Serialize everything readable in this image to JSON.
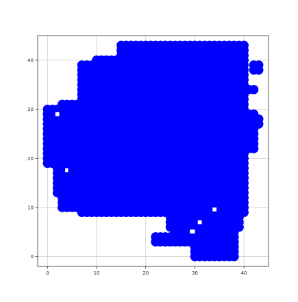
{
  "chart_data": {
    "type": "scatter",
    "title": "",
    "xlabel": "",
    "ylabel": "",
    "xlim": [
      -2,
      45
    ],
    "ylim": [
      -2,
      45
    ],
    "xticks": [
      0,
      10,
      20,
      30,
      40
    ],
    "yticks": [
      0,
      10,
      20,
      30,
      40
    ],
    "xtick_labels": [
      "0",
      "10",
      "20",
      "30",
      "40"
    ],
    "ytick_labels": [
      "0",
      "10",
      "20",
      "30",
      "40"
    ],
    "grid": true,
    "legend": "none",
    "marker_color": "#0000ff",
    "series": [
      {
        "marker": "circle",
        "regions": [
          {
            "x": [
              3,
              9
            ],
            "y": [
              10,
              31
            ]
          },
          {
            "x": [
              0,
              3
            ],
            "y": [
              19,
              30
            ]
          },
          {
            "x": [
              2,
              4
            ],
            "y": [
              13,
              19
            ]
          },
          {
            "x": [
              7,
              16
            ],
            "y": [
              9,
              39
            ]
          },
          {
            "x": [
              10,
              21
            ],
            "y": [
              9,
              40
            ]
          },
          {
            "x": [
              15,
              33
            ],
            "y": [
              9,
              43
            ]
          },
          {
            "x": [
              33,
              40
            ],
            "y": [
              9,
              43
            ]
          },
          {
            "x": [
              39,
              42
            ],
            "y": [
              22,
              29
            ]
          },
          {
            "x": [
              40,
              43
            ],
            "y": [
              27,
              28
            ]
          },
          {
            "x": [
              42,
              43
            ],
            "y": [
              38,
              39
            ]
          },
          {
            "x": [
              41,
              42
            ],
            "y": [
              34,
              34
            ]
          },
          {
            "x": [
              25,
              39
            ],
            "y": [
              6,
              9
            ]
          },
          {
            "x": [
              22,
              25
            ],
            "y": [
              3,
              4
            ]
          },
          {
            "x": [
              26,
              30
            ],
            "y": [
              3,
              6
            ]
          },
          {
            "x": [
              30,
              38
            ],
            "y": [
              0,
              9
            ]
          },
          {
            "x": [
              37,
              38
            ],
            "y": [
              1,
              7
            ]
          }
        ],
        "gaps": [
          {
            "x": [
              1.6,
              2.4
            ],
            "y": [
              28.6,
              29.4
            ]
          },
          {
            "x": [
              3.6,
              4.2
            ],
            "y": [
              17.2,
              18.0
            ]
          },
          {
            "x": [
              30.6,
              31.4
            ],
            "y": [
              6.6,
              7.4
            ]
          },
          {
            "x": [
              29.0,
              30.0
            ],
            "y": [
              4.7,
              5.5
            ]
          },
          {
            "x": [
              33.6,
              34.4
            ],
            "y": [
              9.2,
              10.0
            ]
          }
        ]
      }
    ]
  }
}
